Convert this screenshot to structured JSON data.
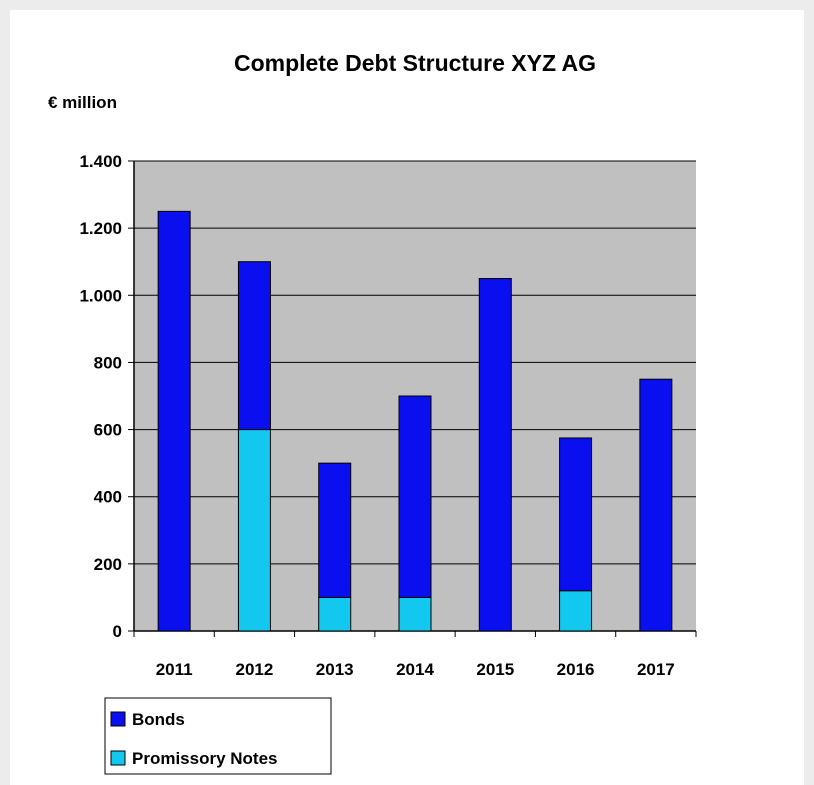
{
  "chart_data": {
    "type": "bar",
    "stacked": true,
    "title": "Complete Debt Structure XYZ AG",
    "ylabel": "€ million",
    "xlabel": "",
    "categories": [
      "2011",
      "2012",
      "2013",
      "2014",
      "2015",
      "2016",
      "2017"
    ],
    "series": [
      {
        "name": "Promissory Notes",
        "color": "#12c8ef",
        "values": [
          0,
          600,
          100,
          100,
          0,
          120,
          0
        ]
      },
      {
        "name": "Bonds",
        "color": "#0a0ff0",
        "values": [
          1250,
          500,
          400,
          600,
          1050,
          455,
          750
        ]
      }
    ],
    "ylim": [
      0,
      1400
    ],
    "yticks": [
      0,
      200,
      400,
      600,
      800,
      1000,
      1200,
      1400
    ],
    "ytick_labels": [
      "0",
      "200",
      "400",
      "600",
      "800",
      "1.000",
      "1.200",
      "1.400"
    ],
    "grid": true,
    "legend_position": "bottom-left",
    "legend_order": [
      "Bonds",
      "Promissory Notes"
    ],
    "plot_background": "#c0c0c0"
  }
}
